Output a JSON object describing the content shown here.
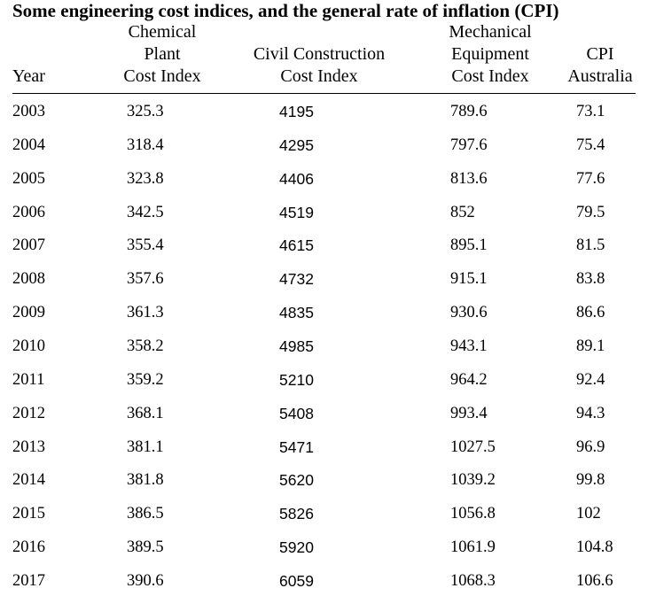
{
  "title": "Some engineering cost indices, and the general rate of inflation (CPI)",
  "headers": {
    "year": [
      "Year"
    ],
    "chemical": [
      "Chemical",
      "Plant",
      "Cost Index"
    ],
    "civil": [
      "Civil Construction",
      "Cost Index"
    ],
    "mechanical": [
      "Mechanical",
      "Equipment",
      "Cost Index"
    ],
    "cpi": [
      "CPI",
      "Australia"
    ]
  },
  "rows": [
    [
      "2003",
      "325.3",
      "4195",
      "789.6",
      "73.1"
    ],
    [
      "2004",
      "318.4",
      "4295",
      "797.6",
      "75.4"
    ],
    [
      "2005",
      "323.8",
      "4406",
      "813.6",
      "77.6"
    ],
    [
      "2006",
      "342.5",
      "4519",
      "852",
      "79.5"
    ],
    [
      "2007",
      "355.4",
      "4615",
      "895.1",
      "81.5"
    ],
    [
      "2008",
      "357.6",
      "4732",
      "915.1",
      "83.8"
    ],
    [
      "2009",
      "361.3",
      "4835",
      "930.6",
      "86.6"
    ],
    [
      "2010",
      "358.2",
      "4985",
      "943.1",
      "89.1"
    ],
    [
      "2011",
      "359.2",
      "5210",
      "964.2",
      "92.4"
    ],
    [
      "2012",
      "368.1",
      "5408",
      "993.4",
      "94.3"
    ],
    [
      "2013",
      "381.1",
      "5471",
      "1027.5",
      "96.9"
    ],
    [
      "2014",
      "381.8",
      "5620",
      "1039.2",
      "99.8"
    ],
    [
      "2015",
      "386.5",
      "5826",
      "1056.8",
      "102"
    ],
    [
      "2016",
      "389.5",
      "5920",
      "1061.9",
      "104.8"
    ],
    [
      "2017",
      "390.6",
      "6059",
      "1068.3",
      "106.6"
    ]
  ]
}
